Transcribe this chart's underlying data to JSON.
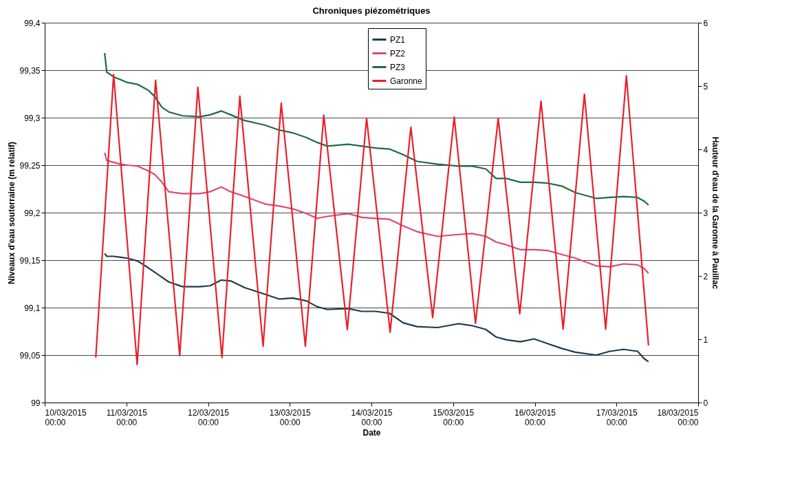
{
  "chart_data": {
    "type": "line",
    "title": "Chroniques piézométriques",
    "xlabel": "Date",
    "ylabel": "Niveaux d'eau souterraine (m relatif)",
    "y2label": "Hauteur d'eau de la Garonne à Pauillac",
    "xlim": [
      "2015-03-10T00:00",
      "2015-03-18T00:00"
    ],
    "xticks": [
      {
        "value": "2015-03-10T00:00",
        "label": "10/03/2015\n00:00"
      },
      {
        "value": "2015-03-11T00:00",
        "label": "11/03/2015\n00:00"
      },
      {
        "value": "2015-03-12T00:00",
        "label": "12/03/2015\n00:00"
      },
      {
        "value": "2015-03-13T00:00",
        "label": "13/03/2015\n00:00"
      },
      {
        "value": "2015-03-14T00:00",
        "label": "14/03/2015\n00:00"
      },
      {
        "value": "2015-03-15T00:00",
        "label": "15/03/2015\n00:00"
      },
      {
        "value": "2015-03-16T00:00",
        "label": "16/03/2015\n00:00"
      },
      {
        "value": "2015-03-17T00:00",
        "label": "17/03/2015\n00:00"
      },
      {
        "value": "2015-03-18T00:00",
        "label": "18/03/2015\n00:00"
      }
    ],
    "ylim": [
      99,
      99.4
    ],
    "yticks": [
      99,
      {
        "value": 99.05,
        "label": "99,05"
      },
      {
        "value": 99.1,
        "label": "99,1"
      },
      {
        "value": 99.15,
        "label": "99,15"
      },
      {
        "value": 99.2,
        "label": "99,2"
      },
      {
        "value": 99.25,
        "label": "99,25"
      },
      {
        "value": 99.3,
        "label": "99,3"
      },
      {
        "value": 99.35,
        "label": "99,35"
      },
      {
        "value": 99.4,
        "label": "99,4"
      }
    ],
    "y2lim": [
      0,
      6
    ],
    "y2ticks": [
      0,
      1,
      2,
      3,
      4,
      5,
      6
    ],
    "grid": "y",
    "legend": "top",
    "marker": "none",
    "line_style": "solid",
    "x": [
      "2015-03-10T17:37",
      "2015-03-10T18:14",
      "2015-03-10T20:15",
      "2015-03-10T22:17",
      "2015-03-11T00:18",
      "2015-03-11T03:20",
      "2015-03-11T06:23",
      "2015-03-11T08:24",
      "2015-03-11T10:26",
      "2015-03-11T12:27",
      "2015-03-11T16:30",
      "2015-03-11T21:34",
      "2015-03-12T00:36",
      "2015-03-12T03:51",
      "2015-03-12T06:41",
      "2015-03-12T10:44",
      "2015-03-12T16:48",
      "2015-03-12T20:51",
      "2015-03-13T00:54",
      "2015-03-13T04:58",
      "2015-03-13T08:00",
      "2015-03-13T11:02",
      "2015-03-13T17:07",
      "2015-03-13T21:10",
      "2015-03-14T01:13",
      "2015-03-14T05:16",
      "2015-03-14T09:19",
      "2015-03-14T13:22",
      "2015-03-14T19:26",
      "2015-03-15T01:31",
      "2015-03-15T05:34",
      "2015-03-15T09:37",
      "2015-03-15T12:39",
      "2015-03-15T15:42",
      "2015-03-15T19:45",
      "2015-03-15T23:48",
      "2015-03-16T03:51",
      "2015-03-16T07:54",
      "2015-03-16T11:57",
      "2015-03-16T18:02",
      "2015-03-16T22:05",
      "2015-03-17T02:08",
      "2015-03-17T06:11",
      "2015-03-17T08:12",
      "2015-03-17T09:25"
    ],
    "series": [
      {
        "name": "PZ1",
        "color": "#1f3a4d",
        "values": [
          99.157,
          99.154,
          99.154,
          99.153,
          99.152,
          99.149,
          99.142,
          99.137,
          99.132,
          99.127,
          99.122,
          99.122,
          99.123,
          99.129,
          99.128,
          99.121,
          99.114,
          99.109,
          99.11,
          99.107,
          99.101,
          99.098,
          99.099,
          99.096,
          99.096,
          99.094,
          99.084,
          99.08,
          99.079,
          99.083,
          99.081,
          99.077,
          99.069,
          99.066,
          99.064,
          99.067,
          99.062,
          99.057,
          99.053,
          99.05,
          99.054,
          99.056,
          99.054,
          99.046,
          99.043
        ]
      },
      {
        "name": "PZ2",
        "color": "#e0457b",
        "values": [
          99.263,
          99.255,
          99.253,
          99.251,
          99.25,
          99.249,
          99.244,
          99.24,
          99.232,
          99.222,
          99.22,
          99.22,
          99.222,
          99.227,
          99.222,
          99.217,
          99.209,
          99.207,
          99.204,
          99.199,
          99.194,
          99.196,
          99.199,
          99.195,
          99.194,
          99.193,
          99.186,
          99.18,
          99.175,
          99.177,
          99.178,
          99.175,
          99.169,
          99.166,
          99.161,
          99.161,
          99.16,
          99.156,
          99.152,
          99.144,
          99.143,
          99.146,
          99.145,
          99.141,
          99.136
        ]
      },
      {
        "name": "PZ3",
        "color": "#1e6b43",
        "values": [
          99.368,
          99.348,
          99.343,
          99.34,
          99.337,
          99.335,
          99.329,
          99.322,
          99.311,
          99.306,
          99.302,
          99.301,
          99.303,
          99.307,
          99.303,
          99.297,
          99.292,
          99.287,
          99.284,
          99.279,
          99.274,
          99.27,
          99.272,
          99.27,
          99.268,
          99.267,
          99.261,
          99.254,
          99.251,
          99.249,
          99.249,
          99.246,
          99.236,
          99.236,
          99.232,
          99.232,
          99.231,
          99.228,
          99.221,
          99.215,
          99.216,
          99.217,
          99.216,
          99.212,
          99.208
        ]
      },
      {
        "name": "Garonne",
        "color": "#e8202a",
        "axis": "y2",
        "x": [
          "2015-03-10T15:00",
          "2015-03-10T20:15",
          "2015-03-11T03:10",
          "2015-03-11T08:35",
          "2015-03-11T15:40",
          "2015-03-11T21:00",
          "2015-03-12T04:05",
          "2015-03-12T09:20",
          "2015-03-12T16:10",
          "2015-03-12T21:30",
          "2015-03-13T04:35",
          "2015-03-13T10:00",
          "2015-03-13T16:55",
          "2015-03-13T22:35",
          "2015-03-14T05:30",
          "2015-03-14T11:35",
          "2015-03-14T18:00",
          "2015-03-15T00:20",
          "2015-03-15T06:35",
          "2015-03-15T13:15",
          "2015-03-15T19:35",
          "2015-03-16T01:50",
          "2015-03-16T08:20",
          "2015-03-16T14:35",
          "2015-03-16T20:50",
          "2015-03-17T02:55",
          "2015-03-17T09:25"
        ],
        "values": [
          0.71,
          5.18,
          0.6,
          5.09,
          0.74,
          4.98,
          0.71,
          4.84,
          0.89,
          4.73,
          0.89,
          4.54,
          1.15,
          4.49,
          1.11,
          4.35,
          1.34,
          4.51,
          1.25,
          4.49,
          1.4,
          4.76,
          1.16,
          4.87,
          1.16,
          5.16,
          0.9
        ]
      }
    ]
  }
}
